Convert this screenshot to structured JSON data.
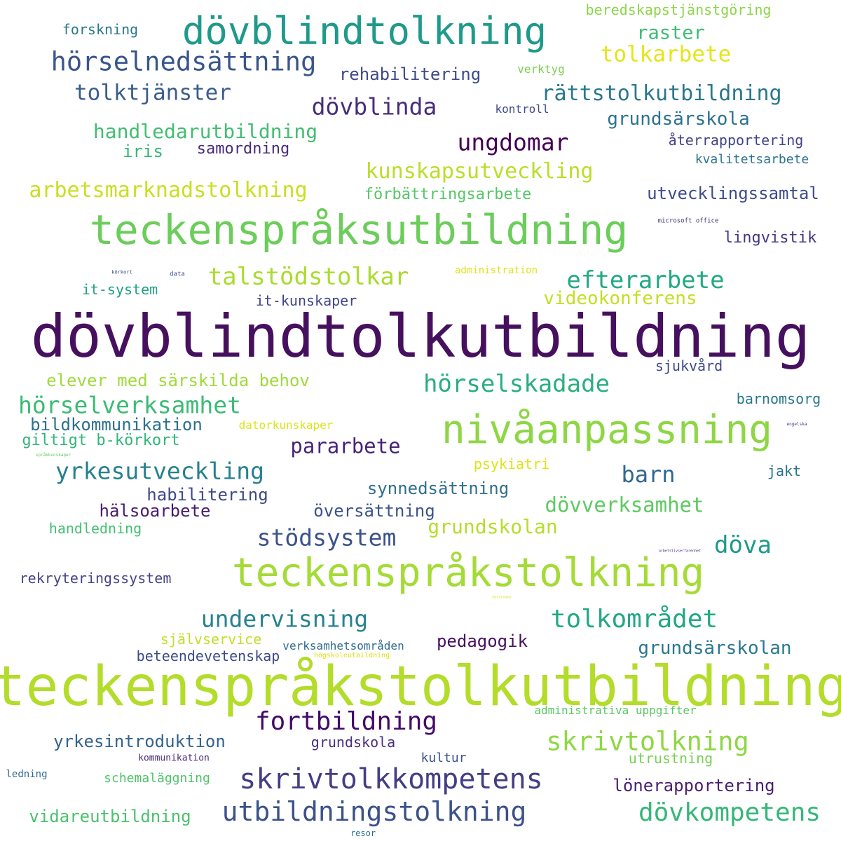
{
  "words": [
    {
      "text": "dövblindtolkutbildning",
      "color": "#46105f"
    },
    {
      "text": "teckenspråkstolkutbildning",
      "color": "#b3dc2b"
    },
    {
      "text": "teckenspråksutbildning",
      "color": "#6bcd5a"
    },
    {
      "text": "teckenspråkstolkning",
      "color": "#a4db36"
    },
    {
      "text": "nivåanpassning",
      "color": "#8ed645"
    },
    {
      "text": "dövblindtolkning",
      "color": "#1f9a8a"
    },
    {
      "text": "skrivtolkkompetens",
      "color": "#433e85"
    },
    {
      "text": "utbildningstolkning",
      "color": "#3b528b"
    },
    {
      "text": "hörselnedsättning",
      "color": "#39568c"
    },
    {
      "text": "skrivtolkning",
      "color": "#8fd744"
    },
    {
      "text": "dövkompetens",
      "color": "#35b779"
    },
    {
      "text": "tolkområdet",
      "color": "#22a884"
    },
    {
      "text": "fortbildning",
      "color": "#440a68"
    },
    {
      "text": "hörselskadade",
      "color": "#29af7f"
    },
    {
      "text": "hörselverksamhet",
      "color": "#3bbb75"
    },
    {
      "text": "talstödstolkar",
      "color": "#a9dc2f"
    },
    {
      "text": "efterarbete",
      "color": "#23a983"
    },
    {
      "text": "undervisning",
      "color": "#25838e"
    },
    {
      "text": "yrkesutveckling",
      "color": "#26818e"
    },
    {
      "text": "stödsystem",
      "color": "#3b528b"
    },
    {
      "text": "dövblinda",
      "color": "#472d7b"
    },
    {
      "text": "ungdomar",
      "color": "#440154"
    },
    {
      "text": "tolktjänster",
      "color": "#3b5e8c"
    },
    {
      "text": "kunskapsutveckling",
      "color": "#bade28"
    },
    {
      "text": "arbetsmarknadstolkning",
      "color": "#c8e020"
    },
    {
      "text": "rättstolkutbildning",
      "color": "#2a778e"
    },
    {
      "text": "handledarutbildning",
      "color": "#42be71"
    },
    {
      "text": "dövverksamhet",
      "color": "#5ec962"
    },
    {
      "text": "grundskolan",
      "color": "#b5de2b"
    },
    {
      "text": "tolkarbete",
      "color": "#e5e419"
    },
    {
      "text": "raster",
      "color": "#3dbc74"
    },
    {
      "text": "döva",
      "color": "#1f998a"
    },
    {
      "text": "pararbete",
      "color": "#482475"
    },
    {
      "text": "barn",
      "color": "#31688e"
    },
    {
      "text": "videokonferens",
      "color": "#c2df23"
    },
    {
      "text": "elever med särskilda behov",
      "color": "#9fda3a"
    },
    {
      "text": "rehabilitering",
      "color": "#3e4989"
    },
    {
      "text": "grundsärskola",
      "color": "#2c728e"
    },
    {
      "text": "grundsärskolan",
      "color": "#2a788e"
    },
    {
      "text": "utvecklingssamtal",
      "color": "#3e4c8a"
    },
    {
      "text": "lönerapportering",
      "color": "#481f70"
    },
    {
      "text": "vidareutbildning",
      "color": "#4ac16d"
    },
    {
      "text": "yrkesintroduktion",
      "color": "#33638d"
    },
    {
      "text": "bildkommunikation",
      "color": "#2d708e"
    },
    {
      "text": "giltigt b-körkort",
      "color": "#32b67a"
    },
    {
      "text": "synnedsättning",
      "color": "#2e6f8e"
    },
    {
      "text": "habilitering",
      "color": "#3e4a89"
    },
    {
      "text": "hälsoarbete",
      "color": "#481b6d"
    },
    {
      "text": "översättning",
      "color": "#3b528b"
    },
    {
      "text": "pedagogik",
      "color": "#471063"
    },
    {
      "text": "förbättringsarbete",
      "color": "#56c667"
    },
    {
      "text": "samordning",
      "color": "#472c7a"
    },
    {
      "text": "iris",
      "color": "#35b779"
    },
    {
      "text": "forskning",
      "color": "#2a778e"
    },
    {
      "text": "beredskapstjänstgöring",
      "color": "#8bd646"
    },
    {
      "text": "återrapportering",
      "color": "#414487"
    },
    {
      "text": "kvalitetsarbete",
      "color": "#2c728e"
    },
    {
      "text": "lingvistik",
      "color": "#453882"
    },
    {
      "text": "sjukvård",
      "color": "#3e4989"
    },
    {
      "text": "barnomsorg",
      "color": "#2a788e"
    },
    {
      "text": "jakt",
      "color": "#2c718e"
    },
    {
      "text": "it-system",
      "color": "#1f9f88"
    },
    {
      "text": "it-kunskaper",
      "color": "#404688"
    },
    {
      "text": "rekryteringssystem",
      "color": "#414487"
    },
    {
      "text": "handledning",
      "color": "#44bf70"
    },
    {
      "text": "självservice",
      "color": "#c0df25"
    },
    {
      "text": "beteendevetenskap",
      "color": "#3e4a89"
    },
    {
      "text": "verksamhetsområden",
      "color": "#2f6b8e"
    },
    {
      "text": "psykiatri",
      "color": "#dde318"
    },
    {
      "text": "grundskola",
      "color": "#472f7d"
    },
    {
      "text": "kultur",
      "color": "#3b528b"
    },
    {
      "text": "utrustning",
      "color": "#7ad151"
    },
    {
      "text": "schemaläggning",
      "color": "#4ec36b"
    },
    {
      "text": "administrativa uppgifter",
      "color": "#5ac864"
    },
    {
      "text": "datorkunskaper",
      "color": "#dde318"
    },
    {
      "text": "verktyg",
      "color": "#7ad151"
    },
    {
      "text": "kontroll",
      "color": "#3e4a89"
    },
    {
      "text": "administration",
      "color": "#dde318"
    },
    {
      "text": "kommunikation",
      "color": "#482979"
    },
    {
      "text": "ledning",
      "color": "#31688e"
    },
    {
      "text": "resor",
      "color": "#2c728e"
    },
    {
      "text": "högskoleutbildning",
      "color": "#d8e219"
    },
    {
      "text": "microsoft office",
      "color": "#46337e"
    },
    {
      "text": "data",
      "color": "#3e4a89"
    },
    {
      "text": "körkort",
      "color": "#3e4c8a"
    },
    {
      "text": "engelska",
      "color": "#453882"
    },
    {
      "text": "språkkunskaper",
      "color": "#5ec962"
    },
    {
      "text": "arbetslivserfarenhet",
      "color": "#472c7a"
    },
    {
      "text": "datorvana",
      "color": "#dde318"
    }
  ]
}
